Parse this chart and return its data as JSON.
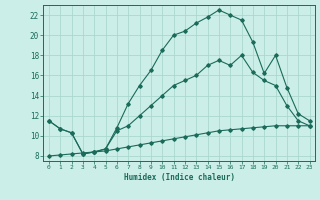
{
  "xlabel": "Humidex (Indice chaleur)",
  "bg_color": "#cceee8",
  "line_color": "#1a6b5a",
  "grid_color": "#aad8d0",
  "xlim": [
    -0.5,
    23.5
  ],
  "ylim": [
    7.5,
    23.0
  ],
  "xticks": [
    0,
    1,
    2,
    3,
    4,
    5,
    6,
    7,
    8,
    9,
    10,
    11,
    12,
    13,
    14,
    15,
    16,
    17,
    18,
    19,
    20,
    21,
    22,
    23
  ],
  "yticks": [
    8,
    10,
    12,
    14,
    16,
    18,
    20,
    22
  ],
  "line1_y": [
    11.5,
    10.7,
    10.3,
    8.2,
    8.4,
    8.7,
    10.8,
    13.2,
    15.0,
    16.5,
    18.5,
    20.0,
    20.4,
    21.2,
    21.8,
    22.5,
    22.0,
    21.5,
    19.3,
    16.2,
    18.0,
    14.8,
    12.2,
    11.5
  ],
  "line2_y": [
    11.5,
    10.7,
    10.3,
    8.2,
    8.4,
    8.7,
    10.5,
    11.0,
    12.0,
    13.0,
    14.0,
    15.0,
    15.5,
    16.0,
    17.0,
    17.5,
    17.0,
    18.0,
    16.3,
    15.5,
    15.0,
    13.0,
    11.5,
    11.0
  ],
  "line3_y": [
    8.0,
    8.1,
    8.2,
    8.3,
    8.4,
    8.5,
    8.7,
    8.9,
    9.1,
    9.3,
    9.5,
    9.7,
    9.9,
    10.1,
    10.3,
    10.5,
    10.6,
    10.7,
    10.8,
    10.9,
    11.0,
    11.0,
    11.0,
    11.0
  ]
}
